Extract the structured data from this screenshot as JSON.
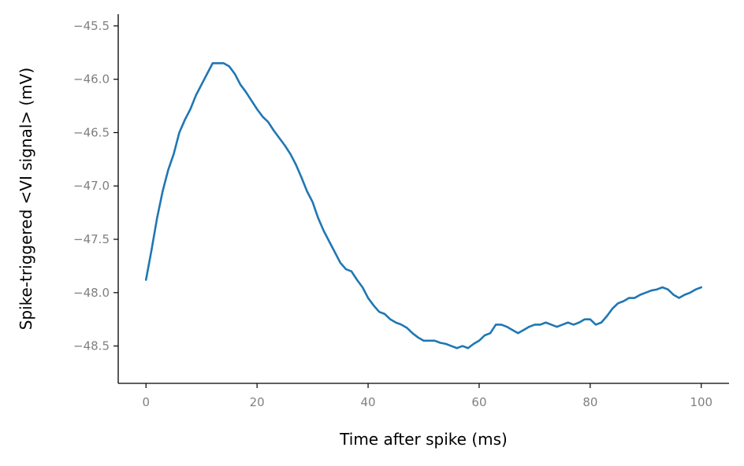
{
  "chart_data": {
    "type": "line",
    "title": "",
    "xlabel": "Time after spike (ms)",
    "ylabel": "Spike-triggered <VI signal> (mV)",
    "xlim": [
      -5,
      105
    ],
    "ylim": [
      -48.85,
      -45.39
    ],
    "xticks": [
      0,
      20,
      40,
      60,
      80,
      100
    ],
    "yticks": [
      -45.5,
      -46.0,
      -46.5,
      -47.0,
      -47.5,
      -48.0,
      -48.5
    ],
    "xtick_labels": [
      "0",
      "20",
      "40",
      "60",
      "80",
      "100"
    ],
    "ytick_labels": [
      "−45.5",
      "−46.0",
      "−46.5",
      "−47.0",
      "−47.5",
      "−48.0",
      "−48.5"
    ],
    "grid": false,
    "line_color": "#1f77b4",
    "series": [
      {
        "x": [
          0,
          1,
          2,
          3,
          4,
          5,
          6,
          7,
          8,
          9,
          10,
          11,
          12,
          13,
          14,
          15,
          16,
          17,
          18,
          19,
          20,
          21,
          22,
          23,
          24,
          25,
          26,
          27,
          28,
          29,
          30,
          31,
          32,
          33,
          34,
          35,
          36,
          37,
          38,
          39,
          40,
          41,
          42,
          43,
          44,
          45,
          46,
          47,
          48,
          49,
          50,
          51,
          52,
          53,
          54,
          55,
          56,
          57,
          58,
          59,
          60,
          61,
          62,
          63,
          64,
          65,
          66,
          67,
          68,
          69,
          70,
          71,
          72,
          73,
          74,
          75,
          76,
          77,
          78,
          79,
          80,
          81,
          82,
          83,
          84,
          85,
          86,
          87,
          88,
          89,
          90,
          91,
          92,
          93,
          94,
          95,
          96,
          97,
          98,
          99,
          100
        ],
        "y": [
          -47.88,
          -47.6,
          -47.3,
          -47.05,
          -46.85,
          -46.7,
          -46.5,
          -46.38,
          -46.28,
          -46.15,
          -46.05,
          -45.95,
          -45.85,
          -45.85,
          -45.85,
          -45.88,
          -45.95,
          -46.05,
          -46.12,
          -46.2,
          -46.28,
          -46.35,
          -46.4,
          -46.48,
          -46.55,
          -46.62,
          -46.7,
          -46.8,
          -46.92,
          -47.05,
          -47.15,
          -47.3,
          -47.42,
          -47.52,
          -47.62,
          -47.72,
          -47.78,
          -47.8,
          -47.88,
          -47.95,
          -48.05,
          -48.12,
          -48.18,
          -48.2,
          -48.25,
          -48.28,
          -48.3,
          -48.33,
          -48.38,
          -48.42,
          -48.45,
          -48.45,
          -48.45,
          -48.47,
          -48.48,
          -48.5,
          -48.52,
          -48.5,
          -48.52,
          -48.48,
          -48.45,
          -48.4,
          -48.38,
          -48.3,
          -48.3,
          -48.32,
          -48.35,
          -48.38,
          -48.35,
          -48.32,
          -48.3,
          -48.3,
          -48.28,
          -48.3,
          -48.32,
          -48.3,
          -48.28,
          -48.3,
          -48.28,
          -48.25,
          -48.25,
          -48.3,
          -48.28,
          -48.22,
          -48.15,
          -48.1,
          -48.08,
          -48.05,
          -48.05,
          -48.02,
          -48.0,
          -47.98,
          -47.97,
          -47.95,
          -47.97,
          -48.02,
          -48.05,
          -48.02,
          -48.0,
          -47.97,
          -47.95
        ]
      }
    ]
  }
}
